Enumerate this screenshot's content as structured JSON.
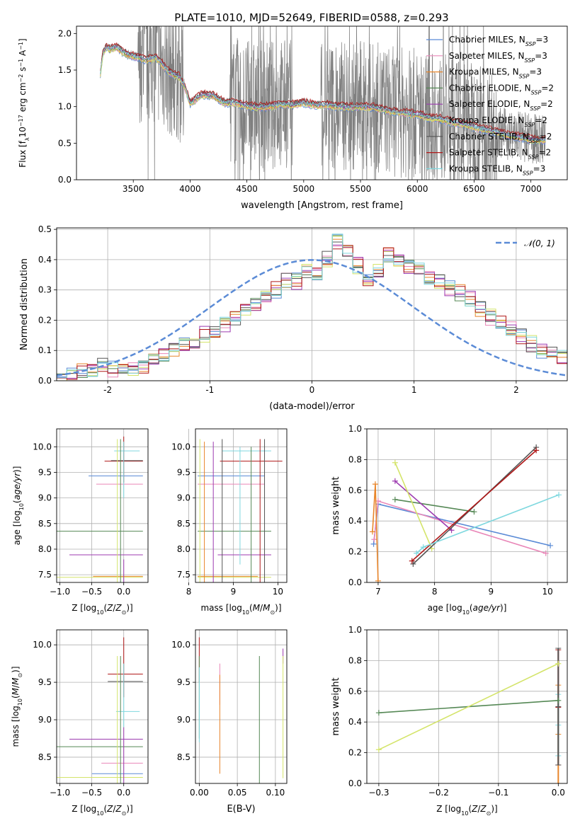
{
  "figure": {
    "title": "PLATE=1010, MJD=52649, FIBERID=0588, z=0.293"
  },
  "colors": {
    "chabrier_miles": "#5b8bd6",
    "salpeter_miles": "#e987b8",
    "kroupa_miles": "#e8852a",
    "chabrier_elodie": "#558855",
    "salpeter_elodie": "#9c3ab0",
    "kroupa_elodie": "#d4e46a",
    "chabrier_stelib": "#555555",
    "salpeter_stelib": "#b01818",
    "kroupa_stelib": "#7fd8df",
    "data": "#808080",
    "gaussian": "#5b8bd6",
    "grid": "#b0b0b0"
  },
  "legend_spectrum": [
    {
      "key": "chabrier_miles",
      "label": "Chabrier MILES, N",
      "sub": "SSP",
      "tail": "=3"
    },
    {
      "key": "salpeter_miles",
      "label": "Salpeter MILES, N",
      "sub": "SSP",
      "tail": "=3"
    },
    {
      "key": "kroupa_miles",
      "label": "Kroupa MILES, N",
      "sub": "SSP",
      "tail": "=3"
    },
    {
      "key": "chabrier_elodie",
      "label": "Chabrier ELODIE, N",
      "sub": "SSP",
      "tail": "=2"
    },
    {
      "key": "salpeter_elodie",
      "label": "Salpeter ELODIE, N",
      "sub": "SSP",
      "tail": "=2"
    },
    {
      "key": "kroupa_elodie",
      "label": "Kroupa ELODIE, N",
      "sub": "SSP",
      "tail": "=2"
    },
    {
      "key": "chabrier_stelib",
      "label": "Chabrier STELIB, N",
      "sub": "SSP",
      "tail": "=2"
    },
    {
      "key": "salpeter_stelib",
      "label": "Salpeter STELIB, N",
      "sub": "SSP",
      "tail": "=2"
    },
    {
      "key": "kroupa_stelib",
      "label": "Kroupa STELIB, N",
      "sub": "SSP",
      "tail": "=3"
    }
  ],
  "legend_hist": {
    "label": "𝒩(0, 1)"
  },
  "chart_data": [
    {
      "id": "spectrum",
      "type": "line",
      "xlabel": "wavelength [Angstrom, rest frame]",
      "ylabel": "Flux [f",
      "ylabel_parts": [
        "Flux [f",
        "λ",
        "10",
        "−17",
        " erg cm",
        "−2",
        " s",
        "−1",
        " A",
        "−1",
        "]"
      ],
      "xlim": [
        3000,
        7320
      ],
      "ylim": [
        0,
        2.1
      ],
      "xticks": [
        3500,
        4000,
        4500,
        5000,
        5500,
        6000,
        6500,
        7000
      ],
      "yticks": [
        0.0,
        0.5,
        1.0,
        1.5,
        2.0
      ],
      "data_range": [
        3210,
        7130
      ],
      "model_continuum": {
        "x": [
          3210,
          3230,
          3260,
          3300,
          3350,
          3400,
          3450,
          3500,
          3550,
          3600,
          3650,
          3700,
          3750,
          3800,
          3850,
          3900,
          3950,
          4000,
          4100,
          4200,
          4300,
          4400,
          4500,
          4600,
          4700,
          4800,
          4900,
          5000,
          5100,
          5200,
          5300,
          5400,
          5500,
          5600,
          5700,
          5800,
          5900,
          6000,
          6100,
          6200,
          6300,
          6400,
          6500,
          6600,
          6700,
          6800,
          6900,
          7000,
          7100,
          7130
        ],
        "y": [
          1.45,
          1.72,
          1.82,
          1.79,
          1.83,
          1.76,
          1.72,
          1.7,
          1.68,
          1.65,
          1.66,
          1.68,
          1.6,
          1.5,
          1.45,
          1.42,
          1.3,
          1.05,
          1.17,
          1.16,
          1.06,
          1.06,
          1.02,
          1.0,
          1.01,
          1.04,
          1.03,
          1.06,
          1.03,
          1.03,
          1.01,
          1.0,
          1.01,
          1.0,
          0.97,
          0.93,
          0.92,
          0.9,
          0.86,
          0.84,
          0.8,
          0.77,
          0.73,
          0.69,
          0.66,
          0.62,
          0.59,
          0.56,
          0.55,
          0.55
        ]
      }
    },
    {
      "id": "residual_hist",
      "type": "bar",
      "xlabel": "(data-model)/error",
      "ylabel": "Normed distribution",
      "xlim": [
        -2.5,
        2.5
      ],
      "ylim": [
        0,
        0.505
      ],
      "xticks": [
        -2,
        -1,
        0,
        1,
        2
      ],
      "yticks": [
        0.0,
        0.1,
        0.2,
        0.3,
        0.4,
        0.5
      ],
      "bin_width": 0.1,
      "bin_start": -2.5,
      "values": [
        0.01,
        0.02,
        0.03,
        0.04,
        0.05,
        0.04,
        0.04,
        0.04,
        0.05,
        0.07,
        0.08,
        0.11,
        0.12,
        0.12,
        0.15,
        0.16,
        0.19,
        0.21,
        0.24,
        0.25,
        0.28,
        0.3,
        0.33,
        0.33,
        0.36,
        0.35,
        0.4,
        0.46,
        0.43,
        0.38,
        0.33,
        0.36,
        0.42,
        0.4,
        0.38,
        0.37,
        0.34,
        0.33,
        0.31,
        0.29,
        0.27,
        0.24,
        0.21,
        0.19,
        0.17,
        0.15,
        0.12,
        0.1,
        0.09,
        0.08
      ]
    },
    {
      "id": "age_vs_Z",
      "type": "scatter",
      "xlabel": "Z [log",
      "ylabel": "age  [log",
      "xlim": [
        -1.05,
        0.38
      ],
      "ylim": [
        7.35,
        10.35
      ],
      "xticks": [
        -1.0,
        -0.5,
        0.0
      ],
      "yticks": [
        7.5,
        8.0,
        8.5,
        9.0,
        9.5,
        10.0
      ],
      "segments": [
        {
          "c": "chabrier_miles",
          "x": [
            -0.55,
            0.3
          ],
          "y": 9.43
        },
        {
          "c": "salpeter_miles",
          "x": [
            -0.43,
            0.3
          ],
          "y": 9.27
        },
        {
          "c": "kroupa_miles",
          "x": [
            -0.48,
            0.3
          ],
          "y": 7.47
        },
        {
          "c": "chabrier_elodie",
          "x": [
            -1.05,
            0.3
          ],
          "y": 8.35
        },
        {
          "c": "salpeter_elodie",
          "x": [
            -0.85,
            0.3
          ],
          "y": 7.89
        },
        {
          "c": "kroupa_elodie",
          "x": [
            -1.05,
            0.3
          ],
          "y": 7.45
        },
        {
          "c": "salpeter_stelib",
          "x": [
            -0.3,
            0.3
          ],
          "y": 9.72
        },
        {
          "c": "kroupa_stelib",
          "x": [
            -0.15,
            0.25
          ],
          "y": 9.92
        },
        {
          "c": "chabrier_stelib",
          "x": [
            -0.2,
            0.3
          ],
          "y": 9.73
        }
      ],
      "vlines": [
        {
          "c": "kroupa_elodie",
          "x": -0.1,
          "y": [
            7.35,
            10.15
          ]
        },
        {
          "c": "chabrier_elodie",
          "x": -0.05,
          "y": [
            7.35,
            10.15
          ]
        },
        {
          "c": "salpeter_stelib",
          "x": 0.0,
          "y": [
            9.3,
            10.2
          ]
        },
        {
          "c": "salpeter_elodie",
          "x": 0.0,
          "y": [
            7.35,
            7.8
          ]
        },
        {
          "c": "kroupa_stelib",
          "x": 0.0,
          "y": [
            9.0,
            10.1
          ]
        }
      ]
    },
    {
      "id": "age_vs_mass",
      "type": "scatter",
      "xlabel": "mass [log",
      "xlim": [
        8.15,
        10.2
      ],
      "ylim": [
        7.35,
        10.35
      ],
      "xticks": [
        8,
        9,
        10
      ],
      "yticks": [
        7.5,
        8.0,
        8.5,
        9.0,
        9.5,
        10.0
      ],
      "segments": [
        {
          "c": "chabrier_miles",
          "x": [
            8.2,
            9.7
          ],
          "y": 9.43
        },
        {
          "c": "salpeter_miles",
          "x": [
            8.2,
            9.7
          ],
          "y": 9.27
        },
        {
          "c": "kroupa_miles",
          "x": [
            8.2,
            9.55
          ],
          "y": 7.47
        },
        {
          "c": "chabrier_elodie",
          "x": [
            8.2,
            9.85
          ],
          "y": 8.35
        },
        {
          "c": "salpeter_elodie",
          "x": [
            8.65,
            9.85
          ],
          "y": 7.89
        },
        {
          "c": "kroupa_elodie",
          "x": [
            8.2,
            9.85
          ],
          "y": 7.45
        },
        {
          "c": "salpeter_stelib",
          "x": [
            8.7,
            10.1
          ],
          "y": 9.72
        },
        {
          "c": "kroupa_stelib",
          "x": [
            8.75,
            9.85
          ],
          "y": 9.92
        }
      ],
      "vlines": [
        {
          "c": "kroupa_elodie",
          "x": 8.25,
          "y": [
            7.35,
            10.15
          ]
        },
        {
          "c": "kroupa_miles",
          "x": 8.35,
          "y": [
            7.35,
            10.1
          ]
        },
        {
          "c": "salpeter_elodie",
          "x": 8.55,
          "y": [
            7.35,
            10.1
          ]
        },
        {
          "c": "chabrier_stelib",
          "x": 8.75,
          "y": [
            7.35,
            10.15
          ]
        },
        {
          "c": "kroupa_stelib",
          "x": 9.15,
          "y": [
            7.7,
            10.0
          ]
        },
        {
          "c": "chabrier_elodie",
          "x": 9.4,
          "y": [
            7.35,
            10.0
          ]
        },
        {
          "c": "salpeter_stelib",
          "x": 9.6,
          "y": [
            7.35,
            10.15
          ]
        },
        {
          "c": "chabrier_stelib",
          "x": 9.7,
          "y": [
            7.35,
            10.15
          ]
        }
      ]
    },
    {
      "id": "massweight_vs_age",
      "type": "line",
      "xlabel": "age  [log",
      "ylabel": "mass weight",
      "xlim": [
        6.8,
        10.35
      ],
      "ylim": [
        0,
        1.0
      ],
      "xticks": [
        7,
        8,
        9,
        10
      ],
      "yticks": [
        0.0,
        0.2,
        0.4,
        0.6,
        0.8,
        1.0
      ],
      "series": [
        {
          "c": "chabrier_miles",
          "x": [
            6.92,
            7.0,
            10.05
          ],
          "y": [
            0.25,
            0.51,
            0.24
          ]
        },
        {
          "c": "salpeter_miles",
          "x": [
            6.93,
            7.0,
            9.97
          ],
          "y": [
            0.28,
            0.53,
            0.19
          ]
        },
        {
          "c": "kroupa_miles",
          "x": [
            6.9,
            6.95,
            7.0
          ],
          "y": [
            0.33,
            0.64,
            0.01
          ]
        },
        {
          "c": "chabrier_elodie",
          "x": [
            7.3,
            8.7
          ],
          "y": [
            0.54,
            0.46
          ]
        },
        {
          "c": "salpeter_elodie",
          "x": [
            7.3,
            8.3
          ],
          "y": [
            0.66,
            0.34
          ]
        },
        {
          "c": "kroupa_elodie",
          "x": [
            7.3,
            7.95
          ],
          "y": [
            0.78,
            0.22
          ]
        },
        {
          "c": "chabrier_stelib",
          "x": [
            7.62,
            9.8
          ],
          "y": [
            0.12,
            0.88
          ]
        },
        {
          "c": "salpeter_stelib",
          "x": [
            7.6,
            9.8
          ],
          "y": [
            0.14,
            0.86
          ]
        },
        {
          "c": "kroupa_stelib",
          "x": [
            7.68,
            7.8,
            10.2
          ],
          "y": [
            0.19,
            0.23,
            0.57
          ]
        }
      ]
    },
    {
      "id": "mass_vs_Z",
      "type": "scatter",
      "xlabel": "Z [log",
      "ylabel": "mass [log",
      "xlim": [
        -1.05,
        0.38
      ],
      "ylim": [
        8.15,
        10.2
      ],
      "xticks": [
        -1.0,
        -0.5,
        0.0
      ],
      "yticks": [
        8.5,
        9.0,
        9.5,
        10.0
      ],
      "segments": [
        {
          "c": "kroupa_elodie",
          "x": [
            -1.05,
            0.3
          ],
          "y": 8.23
        },
        {
          "c": "chabrier_miles",
          "x": [
            -0.5,
            0.3
          ],
          "y": 8.28
        },
        {
          "c": "salpeter_miles",
          "x": [
            -0.35,
            0.3
          ],
          "y": 8.42
        },
        {
          "c": "chabrier_elodie",
          "x": [
            -1.05,
            0.3
          ],
          "y": 8.64
        },
        {
          "c": "salpeter_elodie",
          "x": [
            -0.85,
            0.3
          ],
          "y": 8.74
        },
        {
          "c": "kroupa_stelib",
          "x": [
            -0.12,
            0.25
          ],
          "y": 9.11
        },
        {
          "c": "chabrier_stelib",
          "x": [
            -0.25,
            0.3
          ],
          "y": 9.51
        },
        {
          "c": "salpeter_stelib",
          "x": [
            -0.25,
            0.3
          ],
          "y": 9.61
        }
      ],
      "vlines": [
        {
          "c": "kroupa_elodie",
          "x": -0.1,
          "y": [
            8.15,
            9.85
          ]
        },
        {
          "c": "chabrier_elodie",
          "x": -0.05,
          "y": [
            8.15,
            9.85
          ]
        },
        {
          "c": "salpeter_stelib",
          "x": 0.0,
          "y": [
            9.3,
            10.1
          ]
        },
        {
          "c": "salpeter_elodie",
          "x": 0.0,
          "y": [
            8.15,
            8.9
          ]
        },
        {
          "c": "kroupa_stelib",
          "x": 0.0,
          "y": [
            8.9,
            9.75
          ]
        }
      ]
    },
    {
      "id": "mass_vs_ebv",
      "type": "scatter",
      "xlabel": "E(B-V)",
      "xlim": [
        -0.005,
        0.115
      ],
      "ylim": [
        8.15,
        10.2
      ],
      "xticks": [
        0.0,
        0.05,
        0.1
      ],
      "xticklabels": [
        "0.00",
        "0.05",
        "0.10"
      ],
      "yticks": [
        8.5,
        9.0,
        9.5,
        10.0
      ],
      "vlines": [
        {
          "c": "salpeter_stelib",
          "x": 0.0,
          "y": [
            9.5,
            10.1
          ]
        },
        {
          "c": "chabrier_elodie",
          "x": 0.0,
          "y": [
            8.75,
            9.85
          ]
        },
        {
          "c": "kroupa_stelib",
          "x": 0.0,
          "y": [
            8.7,
            9.7
          ]
        },
        {
          "c": "salpeter_miles",
          "x": 0.027,
          "y": [
            9.2,
            9.75
          ]
        },
        {
          "c": "kroupa_miles",
          "x": 0.027,
          "y": [
            8.28,
            9.6
          ]
        },
        {
          "c": "chabrier_elodie",
          "x": 0.079,
          "y": [
            8.15,
            9.85
          ]
        },
        {
          "c": "salpeter_elodie",
          "x": 0.11,
          "y": [
            9.75,
            9.95
          ]
        },
        {
          "c": "kroupa_elodie",
          "x": 0.11,
          "y": [
            8.22,
            9.85
          ]
        }
      ]
    },
    {
      "id": "massweight_vs_Z",
      "type": "line",
      "xlabel": "Z [log",
      "ylabel": "mass weight",
      "xlim": [
        -0.32,
        0.015
      ],
      "ylim": [
        0,
        1.0
      ],
      "xticks": [
        -0.3,
        -0.2,
        -0.1,
        0.0
      ],
      "yticks": [
        0.0,
        0.2,
        0.4,
        0.6,
        0.8,
        1.0
      ],
      "series": [
        {
          "c": "chabrier_elodie",
          "x": [
            -0.3,
            0.0
          ],
          "y": [
            0.46,
            0.54
          ]
        },
        {
          "c": "kroupa_elodie",
          "x": [
            -0.3,
            0.0
          ],
          "y": [
            0.22,
            0.78
          ]
        }
      ],
      "vlines": [
        {
          "c": "salpeter_stelib",
          "x": 0.0,
          "y": [
            0.12,
            0.87
          ]
        },
        {
          "c": "kroupa_miles",
          "x": 0.0,
          "y": [
            0.0,
            0.64
          ]
        },
        {
          "c": "kroupa_stelib",
          "x": 0.0,
          "y": [
            0.18,
            0.58
          ]
        },
        {
          "c": "chabrier_stelib",
          "x": 0.0,
          "y": [
            0.12,
            0.88
          ]
        }
      ]
    }
  ]
}
